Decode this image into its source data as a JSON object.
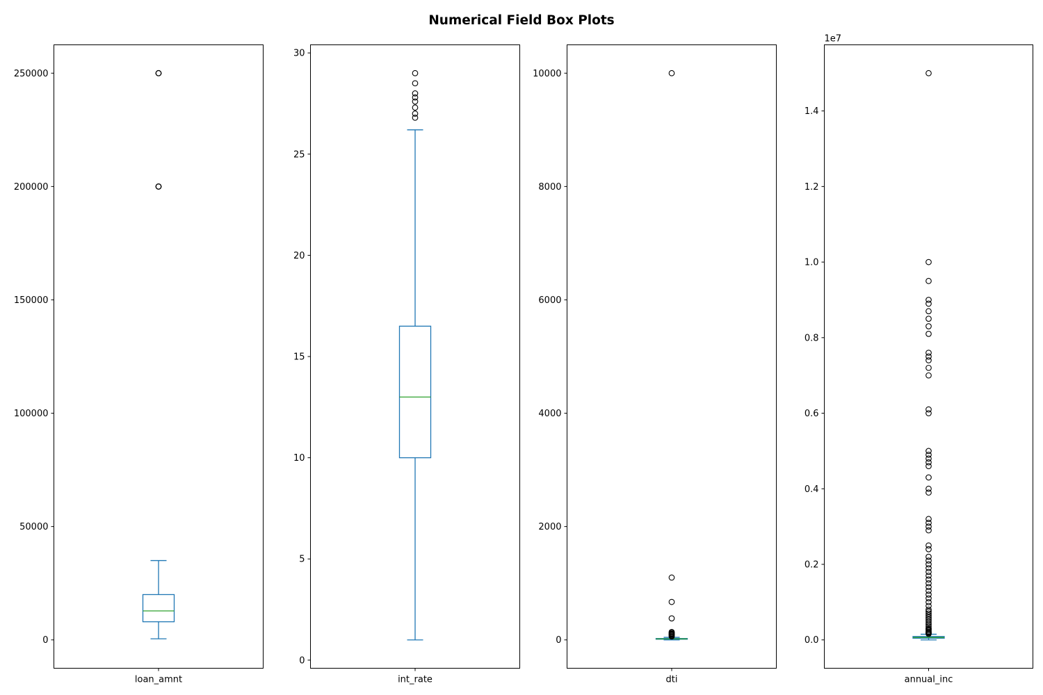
{
  "figure": {
    "title": "Numerical Field Box Plots"
  },
  "colors": {
    "box": "#1f77b4",
    "median": "#2ca02c",
    "flier": "#000000",
    "axes": "#000000",
    "background": "#ffffff"
  },
  "chart_data": [
    {
      "type": "box",
      "category": "loan_amnt",
      "ylim": [
        -12500,
        262500
      ],
      "yticks": [
        0,
        50000,
        100000,
        150000,
        200000,
        250000
      ],
      "ytick_labels": [
        "0",
        "50000",
        "100000",
        "150000",
        "200000",
        "250000"
      ],
      "offset_text": "",
      "whisker_low": 500,
      "q1": 8000,
      "median": 12800,
      "q3": 20000,
      "whisker_high": 35000,
      "outliers": [
        200000,
        200000,
        200000,
        250000,
        250000,
        250000
      ]
    },
    {
      "type": "box",
      "category": "int_rate",
      "ylim": [
        -0.4,
        30.4
      ],
      "yticks": [
        0,
        5,
        10,
        15,
        20,
        25,
        30
      ],
      "ytick_labels": [
        "0",
        "5",
        "10",
        "15",
        "20",
        "25",
        "30"
      ],
      "offset_text": "",
      "whisker_low": 1.0,
      "q1": 10.0,
      "median": 13.0,
      "q3": 16.5,
      "whisker_high": 26.2,
      "outliers": [
        26.8,
        27.0,
        27.3,
        27.6,
        27.8,
        28.0,
        28.5,
        29.0
      ]
    },
    {
      "type": "box",
      "category": "dti",
      "ylim": [
        -500,
        10500
      ],
      "yticks": [
        0,
        2000,
        4000,
        6000,
        8000,
        10000
      ],
      "ytick_labels": [
        "0",
        "2000",
        "4000",
        "6000",
        "8000",
        "10000"
      ],
      "offset_text": "",
      "whisker_low": 0,
      "q1": 12,
      "median": 18,
      "q3": 25,
      "whisker_high": 45,
      "outliers": [
        60,
        75,
        90,
        100,
        110,
        125,
        140,
        380,
        670,
        1100,
        10000
      ]
    },
    {
      "type": "box",
      "category": "annual_inc",
      "ylim": [
        -0.075,
        1.575
      ],
      "yticks": [
        0.0,
        0.2,
        0.4,
        0.6,
        0.8,
        1.0,
        1.2,
        1.4
      ],
      "ytick_labels": [
        "0.0",
        "0.2",
        "0.4",
        "0.6",
        "0.8",
        "1.0",
        "1.2",
        "1.4"
      ],
      "offset_text": "1e7",
      "whisker_low": 0.0,
      "q1": 0.0045,
      "median": 0.0065,
      "q3": 0.009,
      "whisker_high": 0.015,
      "outliers": [
        0.016,
        0.018,
        0.02,
        0.022,
        0.025,
        0.028,
        0.03,
        0.035,
        0.04,
        0.045,
        0.05,
        0.055,
        0.06,
        0.065,
        0.07,
        0.075,
        0.08,
        0.09,
        0.1,
        0.11,
        0.12,
        0.13,
        0.14,
        0.15,
        0.16,
        0.17,
        0.18,
        0.19,
        0.2,
        0.21,
        0.22,
        0.24,
        0.25,
        0.29,
        0.3,
        0.31,
        0.32,
        0.39,
        0.4,
        0.43,
        0.46,
        0.47,
        0.48,
        0.49,
        0.5,
        0.6,
        0.61,
        0.7,
        0.72,
        0.74,
        0.75,
        0.76,
        0.81,
        0.83,
        0.85,
        0.87,
        0.89,
        0.9,
        0.95,
        1.0,
        1.5
      ]
    }
  ]
}
